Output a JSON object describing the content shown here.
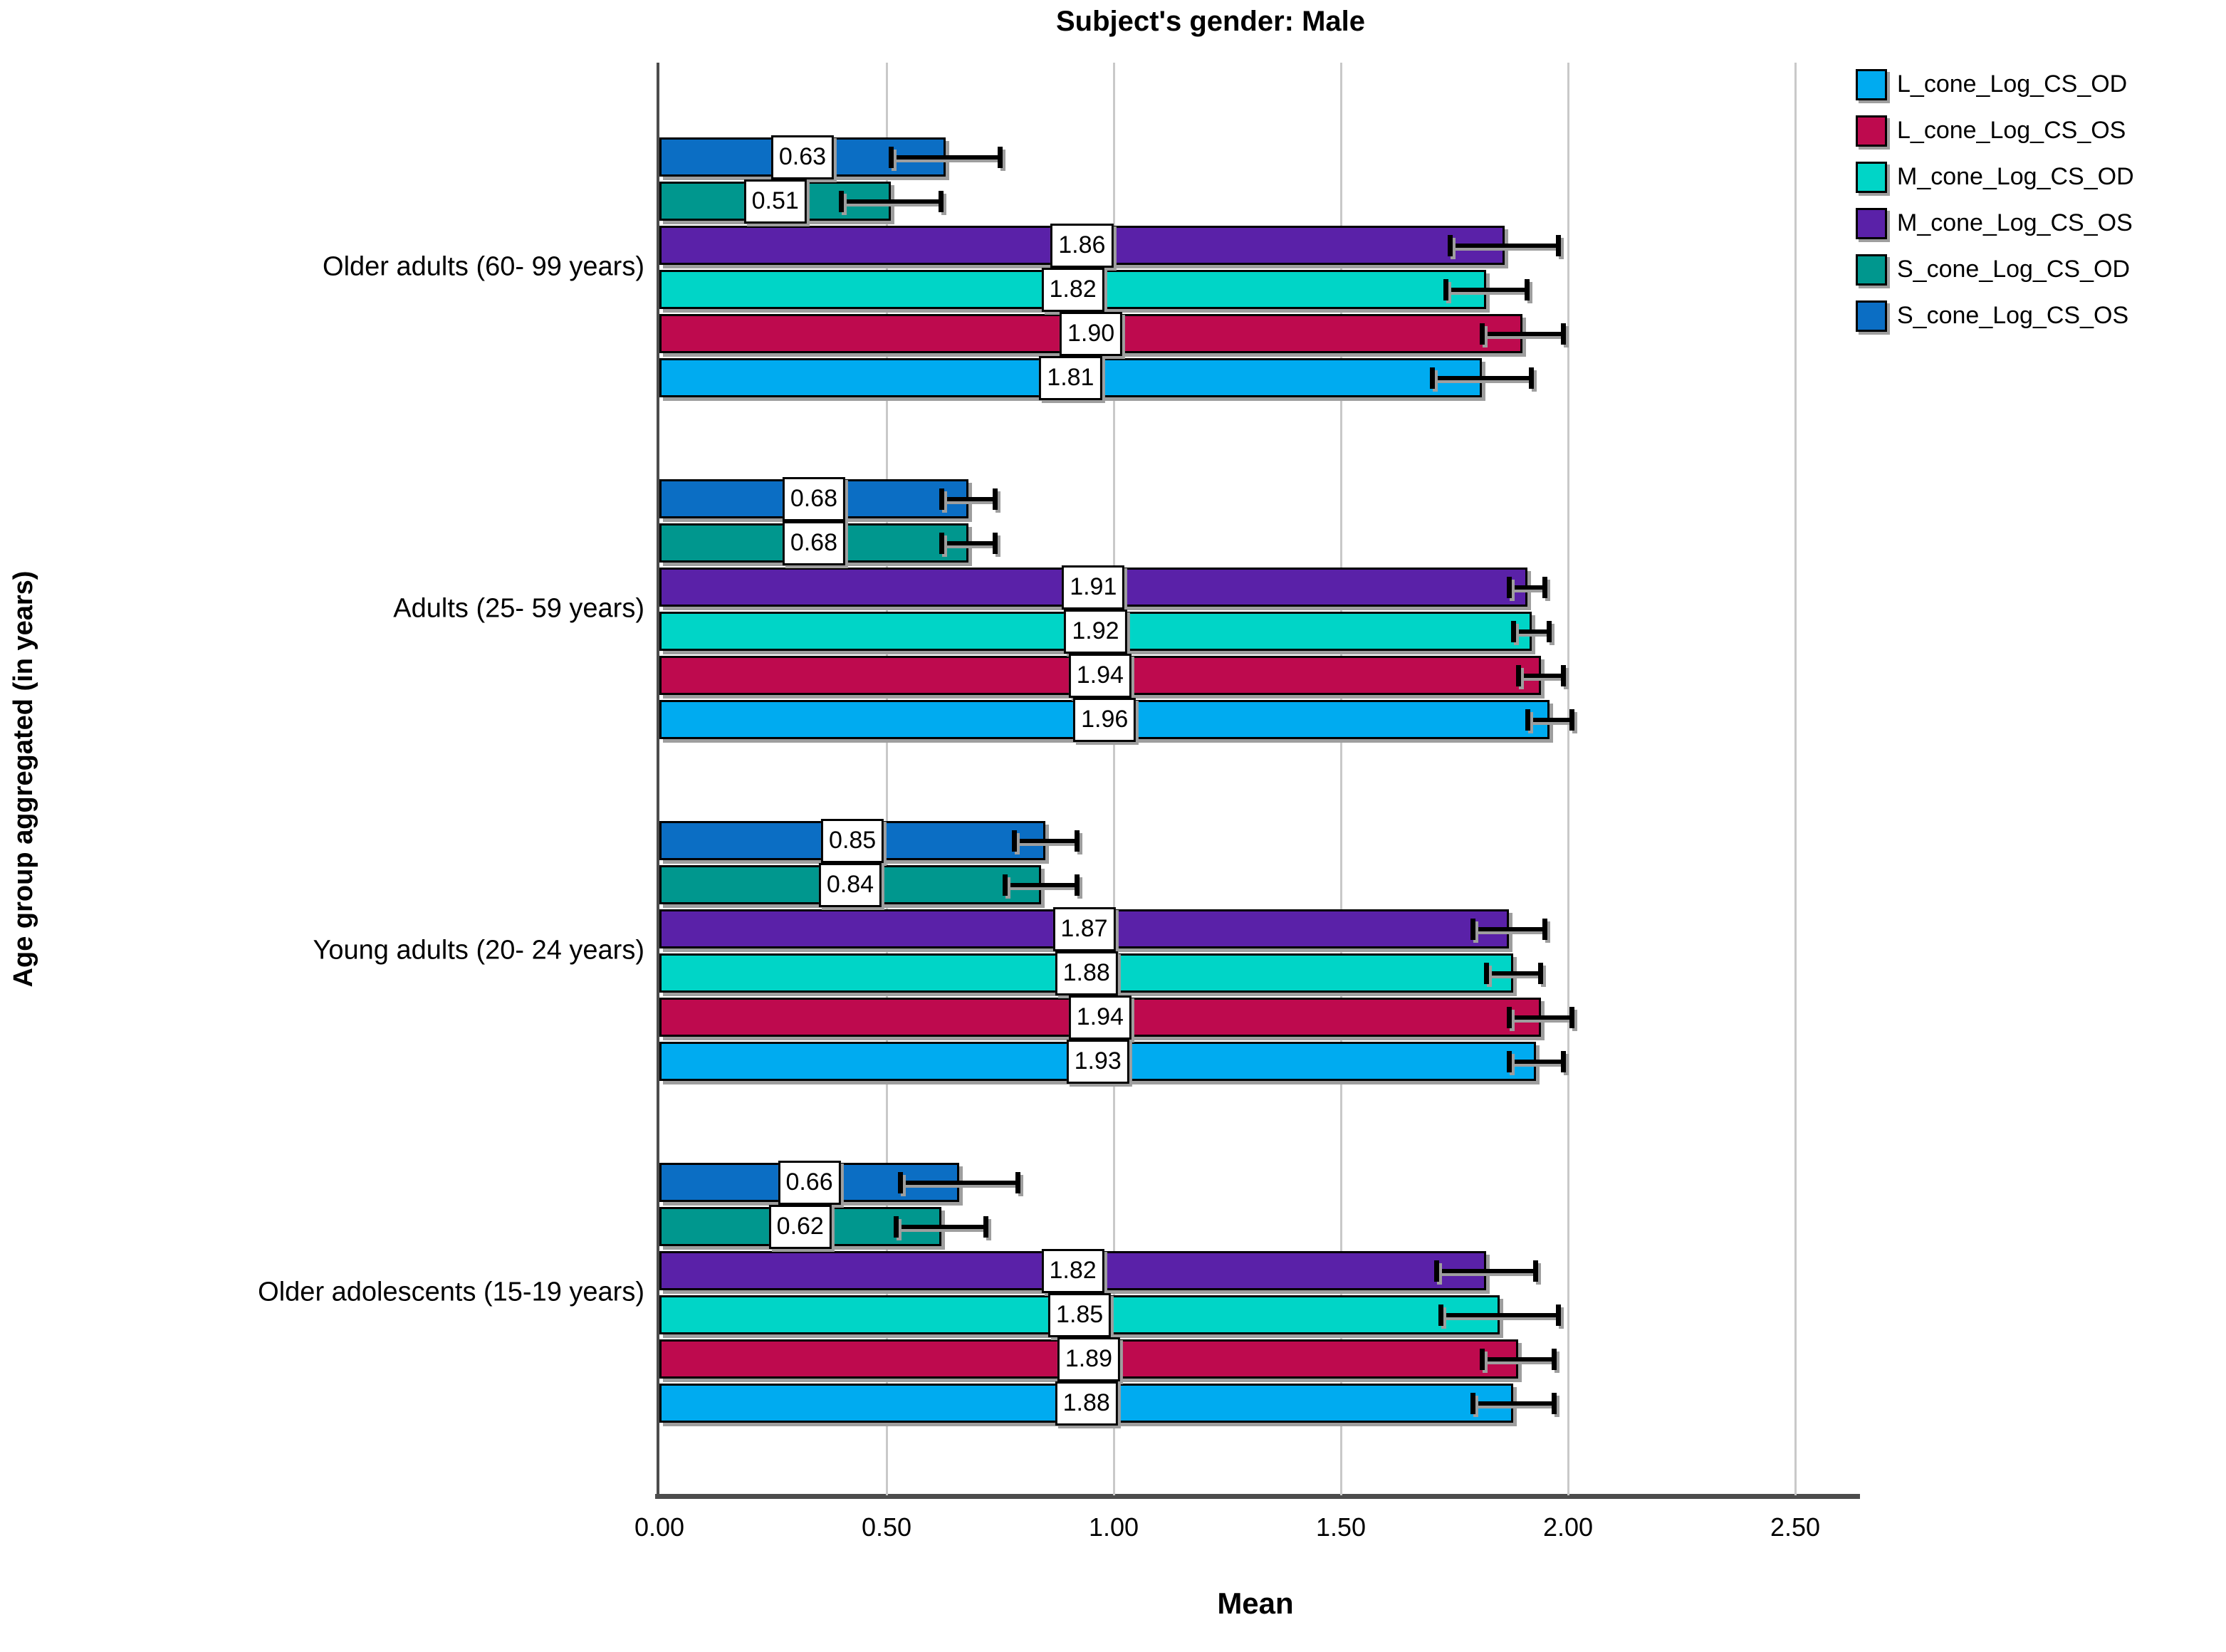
{
  "chart_data": {
    "type": "bar",
    "orientation": "horizontal",
    "title": "Subject's gender: Male",
    "xlabel": "Mean",
    "ylabel": "Age group aggregated (in years)",
    "xlim": [
      0,
      2.62
    ],
    "xticks": [
      "0.00",
      "0.50",
      "1.00",
      "1.50",
      "2.00",
      "2.50"
    ],
    "xtick_values": [
      0,
      0.5,
      1.0,
      1.5,
      2.0,
      2.5
    ],
    "grid": "vertical-gridlines-on",
    "legend_position": "top-right",
    "bar_label_format": "two-decimals",
    "categories": [
      "Older adults (60- 99 years)",
      "Adults (25- 59 years)",
      "Young adults (20- 24 years)",
      "Older adolescents (15-19 years)"
    ],
    "row_order_top_to_bottom": [
      "S_cone_Log_CS_OS",
      "S_cone_Log_CS_OD",
      "M_cone_Log_CS_OS",
      "M_cone_Log_CS_OD",
      "L_cone_Log_CS_OS",
      "L_cone_Log_CS_OD"
    ],
    "series": [
      {
        "name": "L_cone_Log_CS_OD",
        "color": "#00ABF0",
        "values": [
          1.81,
          1.96,
          1.93,
          1.88
        ],
        "errors": [
          0.11,
          0.05,
          0.06,
          0.09
        ]
      },
      {
        "name": "L_cone_Log_CS_OS",
        "color": "#BE0A4E",
        "values": [
          1.9,
          1.94,
          1.94,
          1.89
        ],
        "errors": [
          0.09,
          0.05,
          0.07,
          0.08
        ]
      },
      {
        "name": "M_cone_Log_CS_OD",
        "color": "#00D5C7",
        "values": [
          1.82,
          1.92,
          1.88,
          1.85
        ],
        "errors": [
          0.09,
          0.04,
          0.06,
          0.13
        ]
      },
      {
        "name": "M_cone_Log_CS_OS",
        "color": "#5A21A8",
        "values": [
          1.86,
          1.91,
          1.87,
          1.82
        ],
        "errors": [
          0.12,
          0.04,
          0.08,
          0.11
        ]
      },
      {
        "name": "S_cone_Log_CS_OD",
        "color": "#00978E",
        "values": [
          0.51,
          0.68,
          0.84,
          0.62
        ],
        "errors": [
          0.11,
          0.06,
          0.08,
          0.1
        ]
      },
      {
        "name": "S_cone_Log_CS_OS",
        "color": "#0B6EC4",
        "values": [
          0.63,
          0.68,
          0.85,
          0.66
        ],
        "errors": [
          0.12,
          0.06,
          0.07,
          0.13
        ]
      }
    ],
    "colors": {
      "axis": "#4c4c4c",
      "gridline": "#c9c9c9",
      "bar_border": "#000000",
      "shadow": "#9e9e9e",
      "label_box_bg": "#ffffff"
    }
  }
}
